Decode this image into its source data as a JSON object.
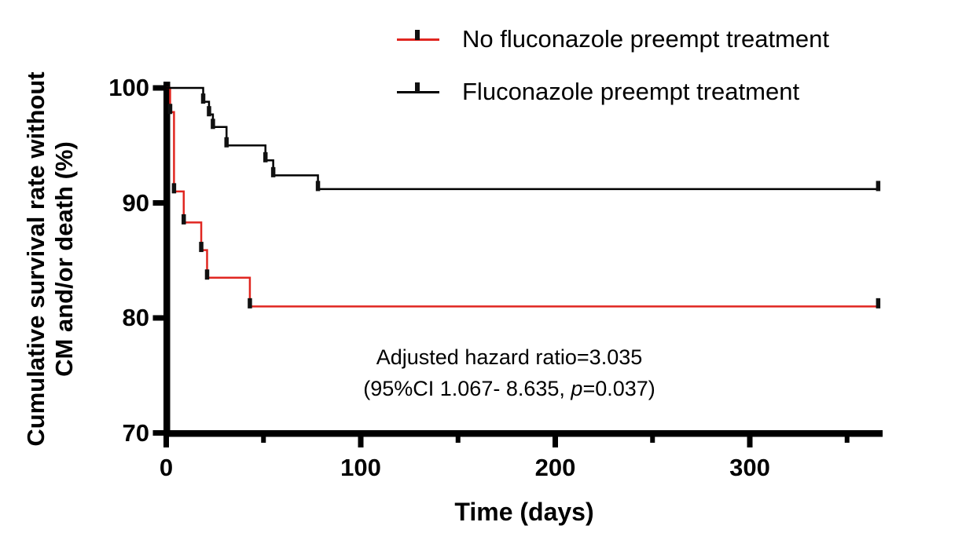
{
  "figure": {
    "y_axis_title_line1": "Cumulative survival rate without",
    "y_axis_title_line2": "CM and/or death (%)",
    "x_axis_title": "Time (days)"
  },
  "legend": {
    "items": [
      {
        "label": "No fluconazole preempt treatment",
        "color": "#e02620",
        "symbol": "censor-line"
      },
      {
        "label": "Fluconazole preempt treatment",
        "color": "#000000",
        "symbol": "censor-line"
      }
    ]
  },
  "annotation": {
    "line1": "Adjusted hazard ratio=3.035",
    "line2_pre": "(95%CI 1.067- 8.635, ",
    "line2_italic": "p",
    "line2_post": "=0.037)"
  },
  "chart_data": {
    "type": "line",
    "subtype": "kaplan-meier-step",
    "title": "",
    "xlabel": "Time (days)",
    "ylabel": "Cumulative survival rate without CM and/or death (%)",
    "xlim": [
      0,
      368
    ],
    "ylim": [
      70,
      100
    ],
    "x_major_ticks": [
      0,
      100,
      200,
      300
    ],
    "x_minor_ticks": [
      50,
      150,
      250,
      350
    ],
    "y_ticks": [
      100,
      90,
      80,
      70
    ],
    "grid": false,
    "legend_position": "top-right",
    "annotation_text": "Adjusted hazard ratio=3.035 (95%CI 1.067- 8.635, p=0.037)",
    "series": [
      {
        "name": "No fluconazole preempt treatment",
        "color": "#e02620",
        "start": [
          0,
          100
        ],
        "steps": [
          [
            2,
            97.9
          ],
          [
            4,
            91.0
          ],
          [
            9,
            88.3
          ],
          [
            18,
            85.9
          ],
          [
            21,
            83.5
          ],
          [
            43,
            81.0
          ]
        ],
        "end": [
          366,
          81.0
        ],
        "censor_marks_at_steps": true,
        "end_censor": true
      },
      {
        "name": "Fluconazole preempt treatment",
        "color": "#000000",
        "start": [
          0,
          100
        ],
        "steps": [
          [
            19,
            98.8
          ],
          [
            22,
            97.7
          ],
          [
            24,
            96.6
          ],
          [
            31,
            95.0
          ],
          [
            51,
            93.7
          ],
          [
            55,
            92.4
          ],
          [
            78,
            91.2
          ]
        ],
        "end": [
          366,
          91.2
        ],
        "censor_marks_at_steps": true,
        "end_censor": true
      }
    ]
  }
}
